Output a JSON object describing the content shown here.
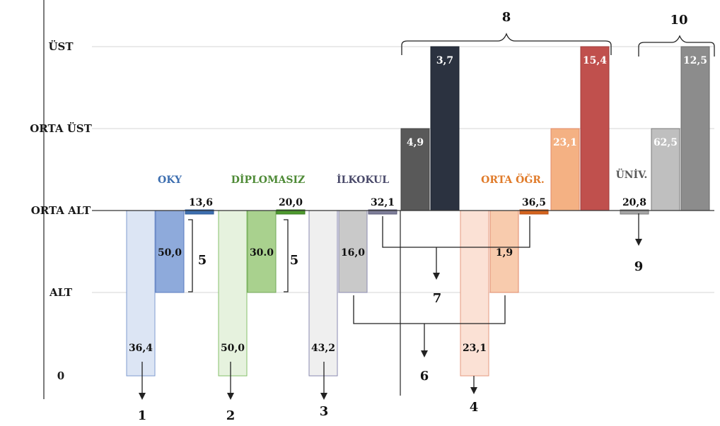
{
  "chart_data": {
    "type": "bar",
    "y_levels": [
      {
        "label": "ÜST",
        "value": 4
      },
      {
        "label": "ORTA ÜST",
        "value": 3
      },
      {
        "label": "ORTA ALT",
        "value": 2
      },
      {
        "label": "ALT",
        "value": 1
      },
      {
        "label": "0",
        "value": 0
      }
    ],
    "baseline_level": 2,
    "groups": [
      {
        "name": "OKY",
        "color": "#3e6fb0",
        "bars": [
          {
            "label": "36,4",
            "from": 0,
            "to": 2,
            "fill": "#dce5f4",
            "stroke": "#7f9bcf"
          },
          {
            "label": "50,0",
            "from": 1,
            "to": 2,
            "fill": "#8eaadb",
            "stroke": "#5a7bbf"
          },
          {
            "label": "13,6",
            "from": 2,
            "to": 2,
            "fill": "#3e6fb0",
            "stroke": "#2e5a96"
          }
        ]
      },
      {
        "name": "DİPLOMASIZ",
        "color": "#4e8a36",
        "bars": [
          {
            "label": "50,0",
            "from": 0,
            "to": 2,
            "fill": "#e6f2de",
            "stroke": "#86c06a"
          },
          {
            "label": "30.0",
            "from": 1,
            "to": 2,
            "fill": "#a9d18e",
            "stroke": "#72a858"
          },
          {
            "label": "20,0",
            "from": 2,
            "to": 2,
            "fill": "#4e9a2e",
            "stroke": "#3a7a22"
          }
        ]
      },
      {
        "name": "İLKOKUL",
        "color": "#4a4a6a",
        "bars": [
          {
            "label": "43,2",
            "from": 0,
            "to": 2,
            "fill": "#efefef",
            "stroke": "#8a8ab0"
          },
          {
            "label": "16,0",
            "from": 1,
            "to": 2,
            "fill": "#c9c9c9",
            "stroke": "#8a8ab0"
          },
          {
            "label": "32,1",
            "from": 2,
            "to": 2,
            "fill": "#7f7f9a",
            "stroke": "#5a5a78"
          },
          {
            "label": "4,9",
            "from": 2,
            "to": 3,
            "fill": "#595959",
            "stroke": "#444444"
          },
          {
            "label": "3,7",
            "from": 2,
            "to": 4,
            "fill": "#2b3240",
            "stroke": "#1e2430"
          }
        ]
      },
      {
        "name": "ORTA ÖĞR.",
        "color": "#e07b2a",
        "bars": [
          {
            "label": "23,1",
            "from": 0,
            "to": 2,
            "fill": "#fbe1d5",
            "stroke": "#e59a80"
          },
          {
            "label": "1,9",
            "from": 1,
            "to": 2,
            "fill": "#f8cbad",
            "stroke": "#e08a6a"
          },
          {
            "label": "36,5",
            "from": 2,
            "to": 2,
            "fill": "#d5641e",
            "stroke": "#b85218"
          },
          {
            "label": "23,1",
            "from": 2,
            "to": 3,
            "fill": "#f4b183",
            "stroke": "#e08a6a"
          },
          {
            "label": "15,4",
            "from": 2,
            "to": 4,
            "fill": "#c0504d",
            "stroke": "#a03c3a"
          }
        ]
      },
      {
        "name": "ÜNİV.",
        "color": "#595959",
        "bars": [
          {
            "label": "20,8",
            "from": 2,
            "to": 2,
            "fill": "#a6a6a6",
            "stroke": "#7a7a7a"
          },
          {
            "label": "62,5",
            "from": 2,
            "to": 3,
            "fill": "#bfbfbf",
            "stroke": "#7a7a7a"
          },
          {
            "label": "12,5",
            "from": 2,
            "to": 4,
            "fill": "#8c8c8c",
            "stroke": "#6a6a6a"
          }
        ]
      }
    ],
    "annotations": [
      "1",
      "2",
      "3",
      "4",
      "5",
      "5",
      "6",
      "7",
      "8",
      "9",
      "10"
    ],
    "grid": true,
    "legend": "none"
  }
}
